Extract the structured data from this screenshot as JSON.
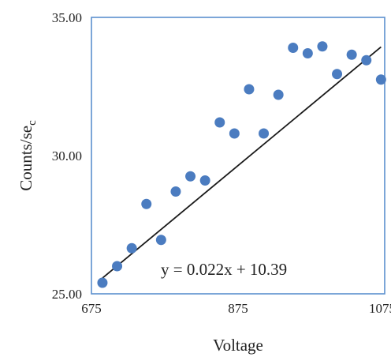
{
  "chart_data": {
    "type": "scatter",
    "xlabel": "Voltage",
    "ylabel_main": "Counts/se",
    "ylabel_sub": "c",
    "xlim": [
      675,
      1075
    ],
    "ylim": [
      25.0,
      35.0
    ],
    "x_ticks": [
      675,
      875,
      1075
    ],
    "x_tick_labels": [
      "675",
      "875",
      "1075"
    ],
    "y_ticks": [
      25,
      30,
      35
    ],
    "y_tick_labels": [
      "25.00",
      "30.00",
      "35.00"
    ],
    "points": [
      {
        "x": 690,
        "y": 25.4
      },
      {
        "x": 710,
        "y": 26.0
      },
      {
        "x": 730,
        "y": 26.65
      },
      {
        "x": 750,
        "y": 28.25
      },
      {
        "x": 770,
        "y": 26.95
      },
      {
        "x": 790,
        "y": 28.7
      },
      {
        "x": 810,
        "y": 29.25
      },
      {
        "x": 830,
        "y": 29.1
      },
      {
        "x": 850,
        "y": 31.2
      },
      {
        "x": 870,
        "y": 30.8
      },
      {
        "x": 890,
        "y": 32.4
      },
      {
        "x": 910,
        "y": 30.8
      },
      {
        "x": 930,
        "y": 32.2
      },
      {
        "x": 950,
        "y": 33.9
      },
      {
        "x": 970,
        "y": 33.7
      },
      {
        "x": 990,
        "y": 33.95
      },
      {
        "x": 1010,
        "y": 32.95
      },
      {
        "x": 1030,
        "y": 33.65
      },
      {
        "x": 1050,
        "y": 33.45
      },
      {
        "x": 1070,
        "y": 32.75
      }
    ],
    "trendline": {
      "slope": 0.022,
      "intercept": 10.39,
      "x_start": 690,
      "x_end": 1070
    },
    "equation_label": "y = 0.022x + 10.39",
    "grid": false,
    "legend": "none",
    "colors": {
      "marker": "#4b7cc0",
      "frame": "#5b8fcf",
      "trendline": "#1a1a1a"
    }
  }
}
